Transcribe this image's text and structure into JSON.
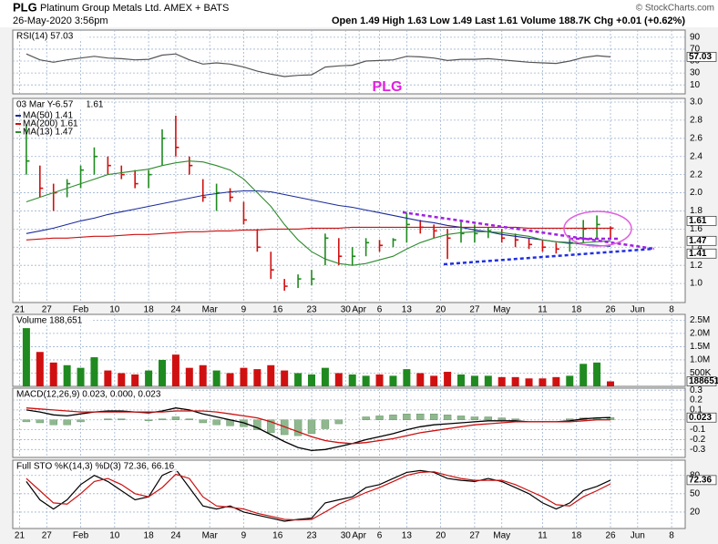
{
  "header": {
    "symbol": "PLG",
    "name": "Platinum Group Metals Ltd.  AMEX + BATS",
    "timestamp": "26-May-2020 3:56pm",
    "quote": "Open 1.49  High 1.63  Low 1.49  Last 1.61  Volume 188.7K  Chg +0.01 (+0.62%)",
    "copyright": "© StockCharts.com",
    "annotation": "PLG"
  },
  "chart_data": [
    {
      "type": "line",
      "label": "RSI(14) 57.03",
      "badges": [
        "57.03"
      ],
      "x": [
        1,
        3,
        5,
        7,
        9,
        11,
        13,
        15,
        17,
        19,
        21,
        23,
        25,
        27,
        29,
        31,
        33,
        35,
        37,
        39,
        41,
        43,
        45,
        47,
        49,
        51,
        53,
        55,
        57,
        59,
        61,
        63,
        65,
        67,
        69,
        71,
        73,
        75,
        77,
        79,
        81,
        83,
        85,
        87
      ],
      "xlim": [
        -1,
        98
      ],
      "ylim": [
        -5,
        102
      ],
      "yticks": [
        90,
        70,
        50,
        30,
        10
      ],
      "grid": true,
      "series": [
        {
          "color": "#555555",
          "values": [
            62,
            52,
            48,
            52,
            55,
            58,
            55,
            54,
            52,
            53,
            60,
            62,
            52,
            45,
            47,
            45,
            40,
            33,
            28,
            24,
            26,
            27,
            40,
            42,
            43,
            50,
            51,
            52,
            58,
            57,
            55,
            51,
            53,
            53,
            54,
            52,
            50,
            48,
            47,
            46,
            50,
            56,
            59,
            57.03
          ]
        }
      ]
    },
    {
      "type": "ohlc",
      "label": "03 Mar Y-6.57",
      "last": "1.61",
      "badges": [
        "1.61",
        "1.47",
        "1.41"
      ],
      "x": [
        1,
        3,
        5,
        7,
        9,
        11,
        13,
        15,
        17,
        19,
        21,
        23,
        25,
        27,
        29,
        31,
        33,
        35,
        37,
        39,
        41,
        43,
        45,
        47,
        49,
        51,
        53,
        55,
        57,
        59,
        61,
        63,
        65,
        67,
        69,
        71,
        73,
        75,
        77,
        79,
        81,
        83,
        85,
        87
      ],
      "high": [
        2.75,
        2.3,
        2.1,
        2.15,
        2.3,
        2.5,
        2.4,
        2.3,
        2.25,
        2.25,
        2.7,
        2.85,
        2.4,
        2.15,
        2.1,
        2.05,
        1.9,
        1.6,
        1.35,
        1.05,
        1.1,
        1.15,
        1.55,
        1.5,
        1.4,
        1.5,
        1.48,
        1.5,
        1.78,
        1.7,
        1.65,
        1.6,
        1.7,
        1.65,
        1.62,
        1.6,
        1.55,
        1.5,
        1.48,
        1.45,
        1.5,
        1.7,
        1.75,
        1.63
      ],
      "low": [
        2.2,
        1.95,
        1.8,
        1.95,
        2.05,
        2.2,
        2.2,
        2.15,
        2.05,
        2.05,
        2.3,
        2.4,
        2.2,
        1.9,
        1.8,
        1.9,
        1.65,
        1.35,
        1.05,
        0.92,
        0.95,
        0.98,
        1.2,
        1.2,
        1.2,
        1.3,
        1.35,
        1.4,
        1.45,
        1.55,
        1.5,
        1.27,
        1.45,
        1.45,
        1.5,
        1.45,
        1.4,
        1.38,
        1.35,
        1.33,
        1.35,
        1.45,
        1.5,
        1.49
      ],
      "close": [
        2.35,
        2.05,
        2.0,
        2.1,
        2.25,
        2.4,
        2.3,
        2.2,
        2.1,
        2.2,
        2.6,
        2.5,
        2.3,
        1.95,
        2.0,
        1.95,
        1.7,
        1.4,
        1.15,
        0.97,
        1.05,
        1.05,
        1.5,
        1.3,
        1.3,
        1.45,
        1.42,
        1.48,
        1.65,
        1.62,
        1.58,
        1.5,
        1.55,
        1.55,
        1.58,
        1.5,
        1.48,
        1.43,
        1.4,
        1.38,
        1.45,
        1.6,
        1.65,
        1.61
      ],
      "up_color": "#1f8a1f",
      "down_color": "#d01010",
      "xlim": [
        -1,
        98
      ],
      "ylim": [
        0.79,
        3.04
      ],
      "yticks": [
        {
          "value": 1,
          "label": "1.0"
        },
        1.2,
        1.4,
        1.6,
        1.8,
        {
          "value": 2,
          "label": "2.0"
        },
        2.2,
        2.4,
        2.6,
        2.8,
        {
          "value": 3,
          "label": "3.0"
        }
      ],
      "xticks": [
        {
          "value": 0,
          "label": "21"
        },
        {
          "value": 4,
          "label": "27"
        },
        {
          "value": 9,
          "label": "Feb"
        },
        {
          "value": 14,
          "label": "10"
        },
        {
          "value": 19,
          "label": "18"
        },
        {
          "value": 23,
          "label": "24"
        },
        {
          "value": 28,
          "label": "Mar"
        },
        {
          "value": 33,
          "label": "9"
        },
        {
          "value": 38,
          "label": "16"
        },
        {
          "value": 43,
          "label": "23"
        },
        {
          "value": 48,
          "label": "30"
        },
        {
          "value": 50,
          "label": "Apr"
        },
        {
          "value": 53,
          "label": "6"
        },
        {
          "value": 57,
          "label": "13"
        },
        {
          "value": 62,
          "label": "20"
        },
        {
          "value": 67,
          "label": "27"
        },
        {
          "value": 71,
          "label": "May"
        },
        {
          "value": 77,
          "label": "11"
        },
        {
          "value": 82,
          "label": "18"
        },
        {
          "value": 87,
          "label": "26"
        },
        {
          "value": 91,
          "label": "Jun"
        },
        {
          "value": 96,
          "label": "8"
        }
      ],
      "grid": true,
      "series": [
        {
          "name": "MA(50) 1.41",
          "color": "#1a2a9a",
          "values": [
            1.55,
            1.58,
            1.61,
            1.65,
            1.69,
            1.72,
            1.76,
            1.79,
            1.82,
            1.85,
            1.88,
            1.91,
            1.94,
            1.97,
            1.99,
            2.01,
            2.02,
            2.02,
            2.01,
            1.98,
            1.95,
            1.92,
            1.89,
            1.86,
            1.84,
            1.81,
            1.78,
            1.75,
            1.72,
            1.69,
            1.67,
            1.64,
            1.62,
            1.59,
            1.57,
            1.54,
            1.52,
            1.5,
            1.48,
            1.46,
            1.45,
            1.43,
            1.42,
            1.41
          ]
        },
        {
          "name": "MA(200) 1.61",
          "color": "#cc1010",
          "values": [
            1.48,
            1.49,
            1.5,
            1.5,
            1.51,
            1.52,
            1.52,
            1.53,
            1.54,
            1.54,
            1.55,
            1.56,
            1.57,
            1.57,
            1.58,
            1.58,
            1.59,
            1.59,
            1.6,
            1.6,
            1.6,
            1.61,
            1.61,
            1.61,
            1.62,
            1.62,
            1.62,
            1.62,
            1.62,
            1.62,
            1.62,
            1.62,
            1.62,
            1.62,
            1.62,
            1.62,
            1.62,
            1.61,
            1.61,
            1.61,
            1.61,
            1.61,
            1.61,
            1.61
          ]
        },
        {
          "name": "MA(13) 1.47",
          "color": "#2e8b2e",
          "values": [
            1.9,
            1.95,
            2.0,
            2.05,
            2.1,
            2.15,
            2.2,
            2.22,
            2.24,
            2.26,
            2.3,
            2.33,
            2.35,
            2.34,
            2.3,
            2.25,
            2.15,
            2.0,
            1.85,
            1.65,
            1.48,
            1.35,
            1.27,
            1.22,
            1.2,
            1.22,
            1.26,
            1.3,
            1.38,
            1.45,
            1.5,
            1.54,
            1.56,
            1.57,
            1.57,
            1.56,
            1.54,
            1.52,
            1.48,
            1.46,
            1.44,
            1.45,
            1.46,
            1.47
          ]
        }
      ]
    },
    {
      "type": "bar",
      "label": "Volume 188,651",
      "badges": [
        "188651"
      ],
      "x": [
        1,
        3,
        5,
        7,
        9,
        11,
        13,
        15,
        17,
        19,
        21,
        23,
        25,
        27,
        29,
        31,
        33,
        35,
        37,
        39,
        41,
        43,
        45,
        47,
        49,
        51,
        53,
        55,
        57,
        59,
        61,
        63,
        65,
        67,
        69,
        71,
        73,
        75,
        77,
        79,
        81,
        83,
        85,
        87
      ],
      "values": [
        2200000,
        1300000,
        900000,
        800000,
        700000,
        1100000,
        600000,
        500000,
        450000,
        600000,
        1000000,
        1200000,
        700000,
        800000,
        600000,
        500000,
        700000,
        650000,
        800000,
        600000,
        500000,
        450000,
        700000,
        500000,
        450000,
        400000,
        450000,
        400000,
        650000,
        500000,
        400000,
        550000,
        450000,
        400000,
        400000,
        350000,
        350000,
        300000,
        300000,
        350000,
        400000,
        850000,
        900000,
        188651
      ],
      "xlim": [
        -1,
        98
      ],
      "ylim": [
        0,
        2720000
      ],
      "yticks": [
        {
          "value": 500000,
          "label": "500K"
        },
        {
          "value": 1000000,
          "label": "1.0M"
        },
        {
          "value": 1500000,
          "label": "1.5M"
        },
        {
          "value": 2000000,
          "label": "2.0M"
        },
        {
          "value": 2500000,
          "label": "2.5M"
        }
      ],
      "grid": true
    },
    {
      "type": "macd",
      "label": "MACD(12,26,9) 0.023, 0.000, 0.023",
      "badges": [
        "0.023"
      ],
      "x": [
        1,
        3,
        5,
        7,
        9,
        11,
        13,
        15,
        17,
        19,
        21,
        23,
        25,
        27,
        29,
        31,
        33,
        35,
        37,
        39,
        41,
        43,
        45,
        47,
        49,
        51,
        53,
        55,
        57,
        59,
        61,
        63,
        65,
        67,
        69,
        71,
        73,
        75,
        77,
        79,
        81,
        83,
        85,
        87
      ],
      "xlim": [
        -1,
        98
      ],
      "ylim": [
        -0.38,
        0.32
      ],
      "yticks": [
        0.3,
        0.2,
        0.1,
        {
          "value": 0,
          "label": "0.0"
        },
        -0.1,
        -0.2,
        -0.3
      ],
      "grid": true,
      "series": [
        {
          "color": "#000000",
          "values": [
            0.1,
            0.08,
            0.05,
            0.04,
            0.06,
            0.08,
            0.09,
            0.09,
            0.08,
            0.07,
            0.09,
            0.12,
            0.1,
            0.06,
            0.03,
            0.0,
            -0.03,
            -0.08,
            -0.15,
            -0.22,
            -0.28,
            -0.31,
            -0.3,
            -0.27,
            -0.24,
            -0.2,
            -0.17,
            -0.14,
            -0.1,
            -0.07,
            -0.05,
            -0.04,
            -0.03,
            -0.02,
            -0.01,
            -0.01,
            -0.01,
            -0.02,
            -0.02,
            -0.02,
            -0.01,
            0.01,
            0.02,
            0.023
          ]
        },
        {
          "color": "#cc1010",
          "values": [
            0.12,
            0.11,
            0.1,
            0.09,
            0.08,
            0.08,
            0.08,
            0.08,
            0.08,
            0.08,
            0.08,
            0.09,
            0.09,
            0.09,
            0.08,
            0.06,
            0.04,
            0.02,
            -0.02,
            -0.07,
            -0.12,
            -0.17,
            -0.21,
            -0.23,
            -0.24,
            -0.23,
            -0.21,
            -0.19,
            -0.16,
            -0.13,
            -0.11,
            -0.09,
            -0.07,
            -0.05,
            -0.04,
            -0.03,
            -0.02,
            -0.02,
            -0.02,
            -0.02,
            -0.02,
            -0.01,
            0.0,
            0.0
          ]
        },
        {
          "kind": "histogram",
          "color": "#8fb88f",
          "values": [
            -0.02,
            -0.03,
            -0.05,
            -0.05,
            -0.02,
            0,
            0.01,
            0.01,
            0,
            -0.01,
            0.01,
            0.03,
            0.01,
            -0.03,
            -0.05,
            -0.06,
            -0.07,
            -0.1,
            -0.13,
            -0.15,
            -0.16,
            -0.14,
            -0.09,
            -0.04,
            0,
            0.03,
            0.04,
            0.05,
            0.06,
            0.06,
            0.06,
            0.05,
            0.04,
            0.03,
            0.03,
            0.02,
            0.01,
            0,
            0,
            0,
            0.01,
            0.02,
            0.02,
            0.023
          ]
        }
      ]
    },
    {
      "type": "line",
      "label": "Full STO %K(14,3) %D(3) 72.36, 66.16",
      "badges": [
        "72.36"
      ],
      "x": [
        1,
        3,
        5,
        7,
        9,
        11,
        13,
        15,
        17,
        19,
        21,
        23,
        25,
        27,
        29,
        31,
        33,
        35,
        37,
        39,
        41,
        43,
        45,
        47,
        49,
        51,
        53,
        55,
        57,
        59,
        61,
        63,
        65,
        67,
        69,
        71,
        73,
        75,
        77,
        79,
        81,
        83,
        85,
        87
      ],
      "xlim": [
        -1,
        98
      ],
      "ylim": [
        -7,
        105
      ],
      "yticks": [
        80,
        50,
        20
      ],
      "grid": true,
      "xticks": [
        {
          "value": 0,
          "label": "21"
        },
        {
          "value": 4,
          "label": "27"
        },
        {
          "value": 9,
          "label": "Feb"
        },
        {
          "value": 14,
          "label": "10"
        },
        {
          "value": 19,
          "label": "18"
        },
        {
          "value": 23,
          "label": "24"
        },
        {
          "value": 28,
          "label": "Mar"
        },
        {
          "value": 33,
          "label": "9"
        },
        {
          "value": 38,
          "label": "16"
        },
        {
          "value": 43,
          "label": "23"
        },
        {
          "value": 48,
          "label": "30"
        },
        {
          "value": 50,
          "label": "Apr"
        },
        {
          "value": 53,
          "label": "6"
        },
        {
          "value": 57,
          "label": "13"
        },
        {
          "value": 62,
          "label": "20"
        },
        {
          "value": 67,
          "label": "27"
        },
        {
          "value": 71,
          "label": "May"
        },
        {
          "value": 77,
          "label": "11"
        },
        {
          "value": 82,
          "label": "18"
        },
        {
          "value": 87,
          "label": "26"
        },
        {
          "value": 91,
          "label": "Jun"
        },
        {
          "value": 96,
          "label": "8"
        }
      ],
      "series": [
        {
          "color": "#000000",
          "values": [
            70,
            40,
            25,
            40,
            65,
            80,
            70,
            55,
            40,
            45,
            80,
            90,
            60,
            30,
            25,
            30,
            20,
            15,
            10,
            5,
            8,
            10,
            35,
            40,
            45,
            60,
            65,
            75,
            85,
            88,
            85,
            75,
            72,
            70,
            75,
            70,
            60,
            50,
            35,
            25,
            35,
            55,
            62,
            72.36
          ]
        },
        {
          "color": "#cc1010",
          "values": [
            75,
            55,
            35,
            33,
            50,
            70,
            75,
            65,
            50,
            45,
            60,
            82,
            75,
            45,
            30,
            28,
            25,
            18,
            13,
            8,
            7,
            8,
            20,
            33,
            42,
            52,
            60,
            70,
            80,
            85,
            86,
            80,
            75,
            72,
            72,
            72,
            65,
            55,
            45,
            32,
            30,
            45,
            55,
            66.16
          ]
        }
      ]
    }
  ]
}
